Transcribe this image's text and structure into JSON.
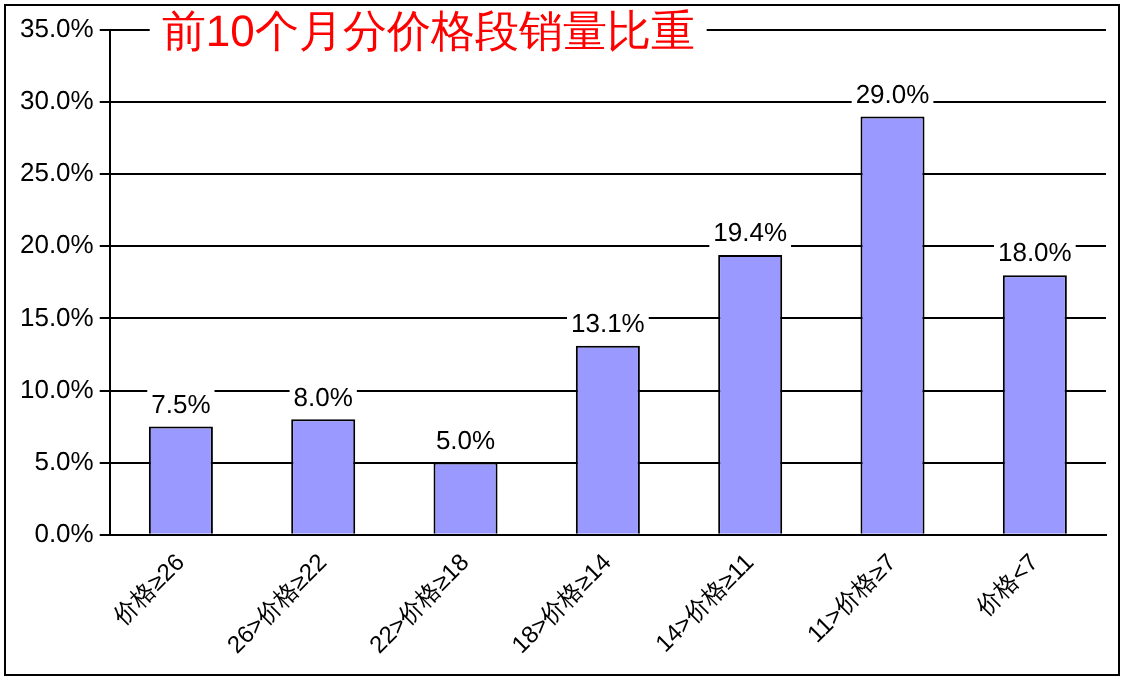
{
  "chart_data": {
    "type": "bar",
    "title": "前10个月分价格段销量比重",
    "categories": [
      "价格≥26",
      "26>价格≥22",
      "22>价格≥18",
      "18>价格≥14",
      "14>价格≥11",
      "11>价格≥7",
      "价格<7"
    ],
    "values": [
      7.5,
      8.0,
      5.0,
      13.1,
      19.4,
      29.0,
      18.0
    ],
    "value_labels": [
      "7.5%",
      "8.0%",
      "5.0%",
      "13.1%",
      "19.4%",
      "29.0%",
      "18.0%"
    ],
    "color": "#9999ff",
    "ylim": [
      0,
      35
    ],
    "yticks": [
      {
        "value": 0,
        "label": "0.0%"
      },
      {
        "value": 5,
        "label": "5.0%"
      },
      {
        "value": 10,
        "label": "10.0%"
      },
      {
        "value": 15,
        "label": "15.0%"
      },
      {
        "value": 20,
        "label": "20.0%"
      },
      {
        "value": 25,
        "label": "25.0%"
      },
      {
        "value": 30,
        "label": "30.0%"
      },
      {
        "value": 35,
        "label": "35.0%"
      }
    ],
    "grid": "y",
    "legend": false
  }
}
